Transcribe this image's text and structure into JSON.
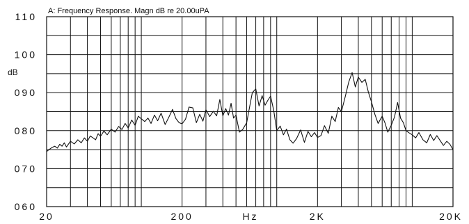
{
  "chart_data": {
    "type": "line",
    "title": "A: Frequency Response. Magn dB re 20.00uPA",
    "ylabel": "dB",
    "xlabel": "Hz",
    "x_scale": "log",
    "xlim": [
      20,
      20000
    ],
    "ylim": [
      60,
      110
    ],
    "grid": true,
    "line_color": "#111111",
    "grid_color": "#111111",
    "x_ticks": [
      {
        "value": 20,
        "label": "20"
      },
      {
        "value": 200,
        "label": "200"
      },
      {
        "value": 2000,
        "label": "2K"
      },
      {
        "value": 20000,
        "label": "20K"
      }
    ],
    "y_ticks": [
      {
        "value": 60,
        "label": "060"
      },
      {
        "value": 70,
        "label": "070"
      },
      {
        "value": 80,
        "label": "080"
      },
      {
        "value": 90,
        "label": "090"
      },
      {
        "value": 100,
        "label": "100"
      },
      {
        "value": 110,
        "label": "110"
      }
    ],
    "x_gridlines": [
      20,
      30,
      40,
      50,
      60,
      70,
      80,
      90,
      100,
      200,
      300,
      400,
      500,
      600,
      700,
      800,
      900,
      1000,
      2000,
      3000,
      4000,
      5000,
      6000,
      7000,
      8000,
      9000,
      10000,
      20000
    ],
    "series": [
      {
        "x": [
          20,
          21,
          22,
          23,
          24,
          25,
          26,
          27,
          28,
          30,
          32,
          34,
          36,
          38,
          40,
          42,
          44,
          46,
          48,
          50,
          53,
          56,
          60,
          64,
          68,
          72,
          76,
          80,
          85,
          90,
          95,
          100,
          106,
          112,
          118,
          125,
          132,
          140,
          150,
          160,
          170,
          180,
          190,
          200,
          212,
          225,
          240,
          255,
          270,
          285,
          300,
          320,
          340,
          360,
          380,
          400,
          420,
          440,
          460,
          480,
          500,
          530,
          560,
          600,
          630,
          660,
          700,
          740,
          780,
          820,
          860,
          900,
          950,
          1000,
          1060,
          1120,
          1180,
          1250,
          1320,
          1400,
          1500,
          1600,
          1700,
          1800,
          1900,
          2000,
          2120,
          2250,
          2400,
          2550,
          2700,
          2850,
          3000,
          3200,
          3400,
          3600,
          3800,
          4000,
          4250,
          4500,
          4750,
          5000,
          5300,
          5600,
          6000,
          6300,
          6600,
          7000,
          7400,
          7800,
          8200,
          8600,
          9000,
          9500,
          10000,
          10600,
          11200,
          12000,
          12800,
          13600,
          14400,
          15200,
          16000,
          17000,
          18000,
          19000,
          20000
        ],
        "y": [
          74.5,
          75.1,
          75.6,
          75.9,
          75.4,
          76.4,
          75.9,
          76.8,
          75.7,
          77.2,
          76.5,
          77.6,
          76.8,
          78.1,
          77.2,
          78.6,
          78.1,
          77.6,
          79.2,
          78.5,
          79.9,
          78.9,
          80.4,
          79.6,
          81.1,
          80.3,
          81.9,
          80.7,
          82.8,
          81.4,
          83.8,
          83.1,
          82.4,
          83.3,
          81.9,
          84.1,
          82.6,
          84.6,
          81.6,
          83.6,
          85.6,
          83.2,
          82.1,
          81.8,
          83.0,
          86.2,
          86.0,
          82.1,
          84.3,
          82.5,
          85.5,
          83.7,
          85.1,
          83.9,
          88.2,
          83.9,
          85.8,
          84.1,
          87.2,
          83.3,
          84.1,
          79.6,
          80.3,
          82.1,
          86.2,
          90.0,
          91.0,
          86.5,
          89.2,
          86.7,
          88.0,
          89.1,
          85.3,
          80.0,
          81.2,
          78.9,
          80.4,
          77.6,
          76.7,
          77.9,
          80.2,
          76.9,
          79.8,
          78.4,
          79.5,
          78.2,
          78.7,
          81.3,
          79.3,
          83.8,
          82.4,
          86.1,
          85.0,
          88.9,
          92.8,
          95.3,
          91.5,
          94.1,
          92.7,
          93.5,
          90.1,
          87.6,
          84.3,
          81.9,
          83.8,
          82.0,
          79.6,
          81.4,
          83.6,
          87.4,
          83.3,
          82.1,
          80.0,
          79.4,
          78.9,
          78.1,
          79.5,
          77.6,
          76.8,
          79.0,
          77.4,
          78.7,
          77.5,
          76.1,
          77.2,
          76.4,
          75.0
        ]
      }
    ]
  }
}
